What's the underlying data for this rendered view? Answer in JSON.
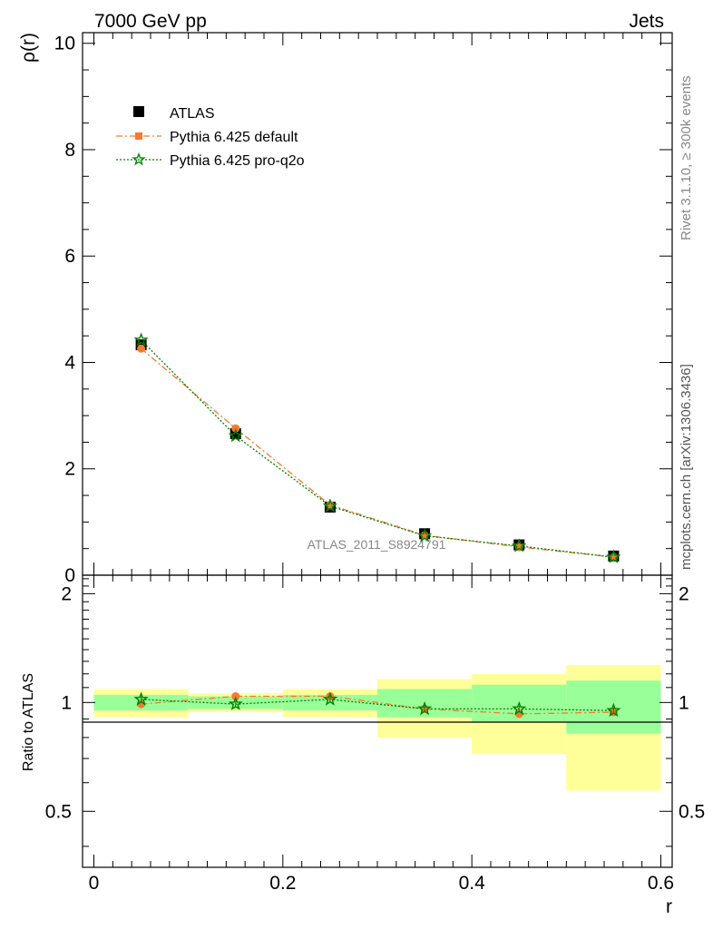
{
  "header": {
    "left": "7000 GeV pp",
    "right": "Jets"
  },
  "side_labels": {
    "rivet": "Rivet 3.1.10, ≥ 300k events",
    "mcplots": "mcplots.cern.ch [arXiv:1306.3436]"
  },
  "watermark": "ATLAS_2011_S8924791",
  "colors": {
    "atlas": "#000000",
    "default": "#f47a30",
    "proq2o": "#008000",
    "band_inner": "#99ff99",
    "band_outer": "#ffff99"
  },
  "chart_data": [
    {
      "type": "line",
      "title": "",
      "xlabel": "r",
      "ylabel": "ρ(r)",
      "xlim": [
        -0.012,
        0.612
      ],
      "ylim": [
        0,
        10.2
      ],
      "x_ticks": [
        "0",
        "0.2",
        "0.4",
        "0.6"
      ],
      "x_tick_values": [
        0,
        0.2,
        0.4,
        0.6
      ],
      "y_ticks": [
        "0",
        "2",
        "4",
        "6",
        "8",
        "10"
      ],
      "y_tick_values": [
        0,
        2,
        4,
        6,
        8,
        10
      ],
      "legend_placement": "top-left",
      "x": [
        0.05,
        0.15,
        0.25,
        0.35,
        0.45,
        0.55
      ],
      "x_err": 0.05,
      "series": [
        {
          "name": "ATLAS",
          "marker": "square",
          "values": [
            4.33,
            2.66,
            1.28,
            0.78,
            0.57,
            0.36
          ]
        },
        {
          "name": "Pythia 6.425 default",
          "marker": "circle",
          "values": [
            4.26,
            2.76,
            1.32,
            0.75,
            0.53,
            0.34
          ]
        },
        {
          "name": "Pythia 6.425 pro-q2o",
          "marker": "star",
          "values": [
            4.42,
            2.62,
            1.3,
            0.74,
            0.55,
            0.34
          ]
        }
      ]
    },
    {
      "type": "line",
      "title": "",
      "xlabel": "r",
      "ylabel": "Ratio to ATLAS",
      "xlim": [
        -0.012,
        0.612
      ],
      "ylim": [
        0.35,
        2.25
      ],
      "y_ticks": [
        "0.5",
        "1",
        "2"
      ],
      "y_tick_values": [
        0.5,
        1,
        2
      ],
      "x_edges": [
        0,
        0.1,
        0.2,
        0.3,
        0.4,
        0.5,
        0.6
      ],
      "band_inner": {
        "low": [
          0.95,
          0.96,
          0.95,
          0.91,
          0.88,
          0.82
        ],
        "high": [
          1.05,
          1.04,
          1.05,
          1.09,
          1.12,
          1.15
        ]
      },
      "band_outer": {
        "low": [
          0.91,
          0.94,
          0.91,
          0.8,
          0.72,
          0.57
        ],
        "high": [
          1.09,
          1.06,
          1.09,
          1.16,
          1.2,
          1.27
        ]
      },
      "series": [
        {
          "name": "Pythia 6.425 default",
          "values": [
            0.99,
            1.04,
            1.04,
            0.96,
            0.93,
            0.94
          ]
        },
        {
          "name": "Pythia 6.425 pro-q2o",
          "values": [
            1.02,
            0.99,
            1.02,
            0.96,
            0.96,
            0.95
          ]
        }
      ]
    }
  ]
}
